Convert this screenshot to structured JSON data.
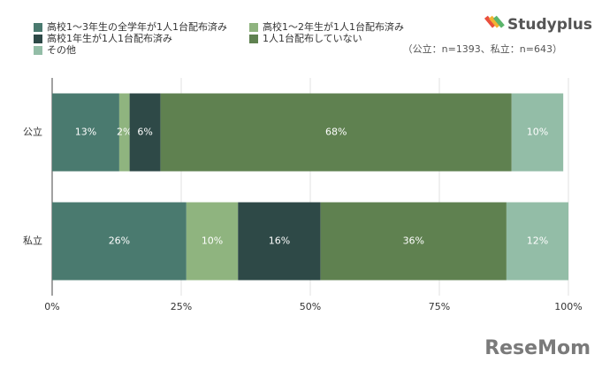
{
  "chart_data": {
    "type": "stacked-bar-horizontal",
    "note": "（公立：n=1393、私立：n=643）",
    "brand": "Studyplus",
    "watermark": "ReseMom",
    "categories": [
      "公立",
      "私立"
    ],
    "series": [
      {
        "name": "高校1〜3年生の全学年が1人1台配布済み",
        "color": "#4a7a6f",
        "values": [
          13,
          26
        ],
        "value_labels": [
          "13%",
          "26%"
        ]
      },
      {
        "name": "高校1〜2年生が1人1台配布済み",
        "color": "#8fb47f",
        "values": [
          2,
          10
        ],
        "value_labels": [
          "2%",
          "10%"
        ]
      },
      {
        "name": "高校1年生が1人1台配布済み",
        "color": "#2e4947",
        "values": [
          6,
          16
        ],
        "value_labels": [
          "6%",
          "16%"
        ]
      },
      {
        "name": "1人1台配布していない",
        "color": "#5f8150",
        "values": [
          68,
          36
        ],
        "value_labels": [
          "68%",
          "36%"
        ]
      },
      {
        "name": "その他",
        "color": "#93bda7",
        "values": [
          10,
          12
        ],
        "value_labels": [
          "10%",
          "12%"
        ]
      }
    ],
    "xlim": [
      0,
      100
    ],
    "xticks": [
      {
        "value": 0,
        "label": "0%"
      },
      {
        "value": 25,
        "label": "25%"
      },
      {
        "value": 50,
        "label": "50%"
      },
      {
        "value": 75,
        "label": "75%"
      },
      {
        "value": 100,
        "label": "100%"
      }
    ],
    "grid": true
  }
}
